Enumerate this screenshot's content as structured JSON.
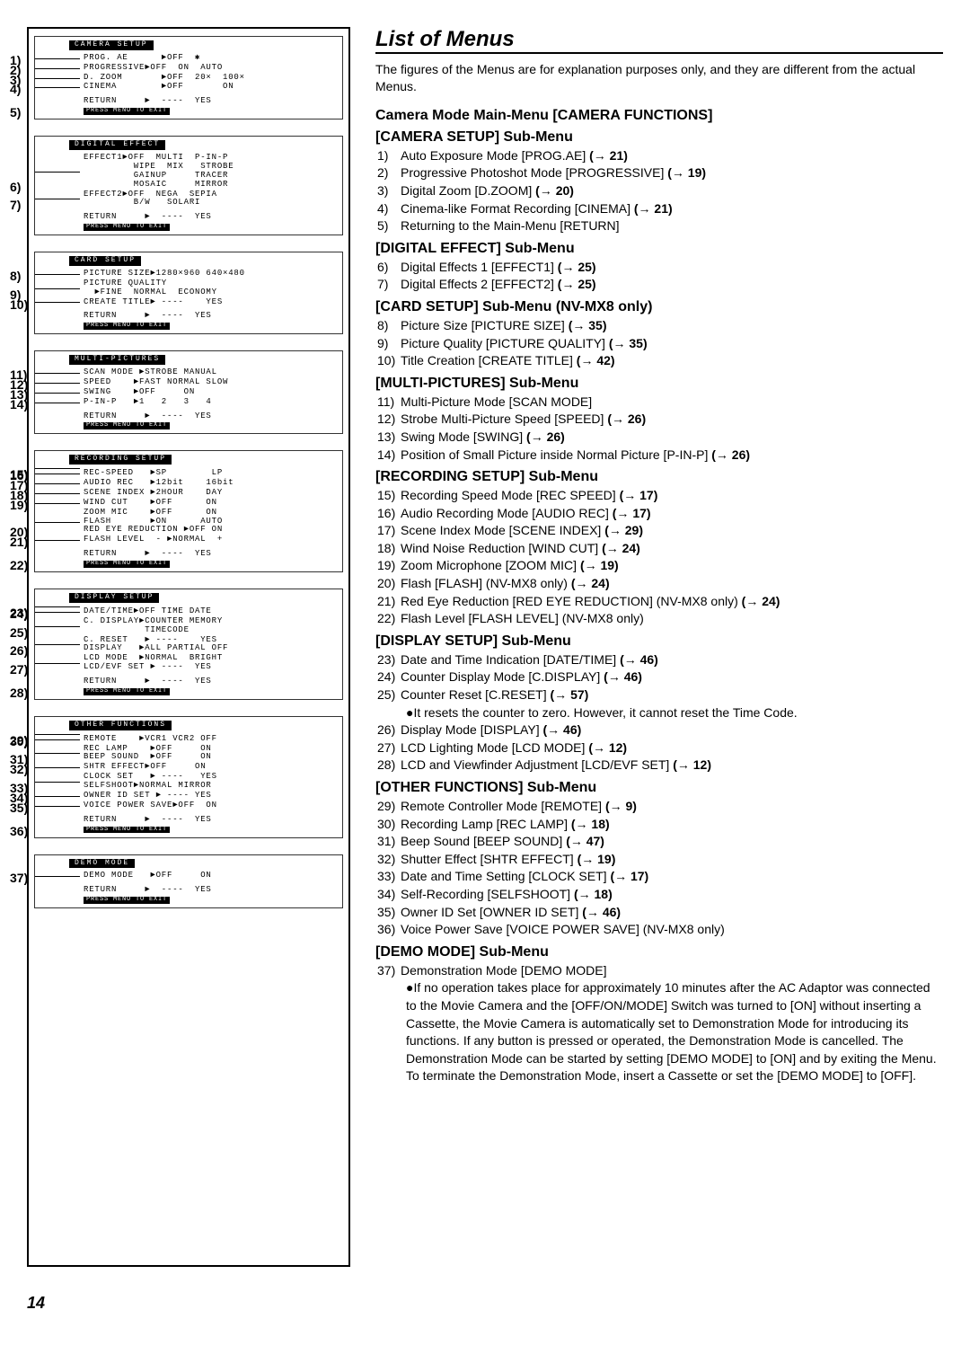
{
  "pageNumber": "14",
  "title": "List of Menus",
  "intro": "The figures of the Menus are for explanation purposes only, and they are different from the actual Menus.",
  "mainTitle": "Camera Mode Main-Menu [CAMERA FUNCTIONS]",
  "returnText": "RETURN",
  "returnHint": "PRESS MENU TO EXIT",
  "yesDash": "----  YES",
  "diagramBoxes": [
    {
      "header": "CAMERA SETUP",
      "rows": [
        {
          "num": "1)",
          "text": "PROG. AE      ►OFF  ✱"
        },
        {
          "num": "2)",
          "text": "PROGRESSIVE►OFF  ON  AUTO"
        },
        {
          "num": "3)",
          "text": "D. ZOOM       ►OFF  20×  100×"
        },
        {
          "num": "4)",
          "text": "CINEMA        ►OFF       ON"
        },
        {
          "num": "5)",
          "text": "",
          "isReturn": true
        }
      ]
    },
    {
      "header": "DIGITAL EFFECT",
      "rows": [
        {
          "num": "6)",
          "text": "EFFECT1►OFF  MULTI  P-IN-P\n         WIPE  MIX   STROBE\n         GAINUP     TRACER\n         MOSAIC     MIRROR"
        },
        {
          "num": "7)",
          "text": "EFFECT2►OFF  NEGA  SEPIA\n         B/W   SOLARI"
        }
      ]
    },
    {
      "header": "CARD SETUP",
      "rows": [
        {
          "num": "8)",
          "text": "PICTURE SIZE►1280×960 640×480"
        },
        {
          "num": "9)",
          "text": "PICTURE QUALITY\n  ►FINE  NORMAL  ECONOMY"
        },
        {
          "num": "10)",
          "text": "CREATE TITLE► ----    YES"
        }
      ]
    },
    {
      "header": "MULTI-PICTURES",
      "rows": [
        {
          "num": "11)",
          "text": "SCAN MODE ►STROBE MANUAL"
        },
        {
          "num": "12)",
          "text": "SPEED    ►FAST NORMAL SLOW"
        },
        {
          "num": "13)",
          "text": "SWING    ►OFF     ON"
        },
        {
          "num": "14)",
          "text": "P-IN-P   ►1   2   3   4"
        }
      ]
    },
    {
      "header": "RECORDING SETUP",
      "rows": [
        {
          "num": "15)",
          "text": ""
        },
        {
          "num": "16)",
          "text": "REC-SPEED   ►SP        LP"
        },
        {
          "num": "17)",
          "text": "AUDIO REC   ►12bit    16bit"
        },
        {
          "num": "18)",
          "text": "SCENE INDEX ►2HOUR    DAY"
        },
        {
          "num": "19)",
          "text": "WIND CUT    ►OFF      ON"
        },
        {
          "num": "20)",
          "text": "ZOOM MIC    ►OFF      ON\nFLASH       ►ON      AUTO\nRED EYE REDUCTION ►OFF ON"
        },
        {
          "num": "21)",
          "text": "FLASH LEVEL  - ►NORMAL  +"
        },
        {
          "num": "22)",
          "text": "",
          "isReturnInline": true
        }
      ]
    },
    {
      "header": "DISPLAY SETUP",
      "rows": [
        {
          "num": "23)",
          "text": ""
        },
        {
          "num": "24)",
          "text": "DATE/TIME►OFF TIME DATE"
        },
        {
          "num": "25)",
          "text": "C. DISPLAY►COUNTER MEMORY\n           TIMECODE"
        },
        {
          "num": "26)",
          "text": "C. RESET   ► ----    YES\nDISPLAY   ►ALL PARTIAL OFF"
        },
        {
          "num": "27)",
          "text": "LCD MODE  ►NORMAL  BRIGHT\nLCD/EVF SET ► ----  YES"
        },
        {
          "num": "28)",
          "text": "",
          "isReturnInline": true
        }
      ]
    },
    {
      "header": "OTHER FUNCTIONS",
      "rows": [
        {
          "num": "29)",
          "text": ""
        },
        {
          "num": "30)",
          "text": "REMOTE    ►VCR1 VCR2 OFF"
        },
        {
          "num": "31)",
          "text": "REC LAMP    ►OFF     ON\nBEEP SOUND  ►OFF     ON"
        },
        {
          "num": "32)",
          "text": "SHTR EFFECT►OFF     ON"
        },
        {
          "num": "33)",
          "text": "CLOCK SET   ► ----   YES\nSELFSHOOT►NORMAL MIRROR"
        },
        {
          "num": "34)",
          "text": "OWNER ID SET ► ---- YES"
        },
        {
          "num": "35)",
          "text": "VOICE POWER SAVE►OFF  ON"
        },
        {
          "num": "36)",
          "text": "",
          "isReturnInline": true
        }
      ]
    },
    {
      "header": "DEMO MODE",
      "rows": [
        {
          "num": "37)",
          "text": "DEMO MODE   ►OFF     ON"
        }
      ]
    }
  ],
  "sections": [
    {
      "heading": "[CAMERA SETUP] Sub-Menu",
      "items": [
        {
          "n": "1)",
          "label": "Auto Exposure Mode [PROG.AE]",
          "ref": "(→ 21)"
        },
        {
          "n": "2)",
          "label": "Progressive Photoshot Mode [PROGRESSIVE]",
          "ref": "(→ 19)"
        },
        {
          "n": "3)",
          "label": "Digital Zoom [D.ZOOM]",
          "ref": "(→ 20)"
        },
        {
          "n": "4)",
          "label": "Cinema-like Format Recording [CINEMA]",
          "ref": "(→ 21)"
        },
        {
          "n": "5)",
          "label": "Returning to the Main-Menu [RETURN]",
          "ref": ""
        }
      ]
    },
    {
      "heading": "[DIGITAL EFFECT] Sub-Menu",
      "items": [
        {
          "n": "6)",
          "label": "Digital Effects 1 [EFFECT1]",
          "ref": "(→ 25)"
        },
        {
          "n": "7)",
          "label": "Digital Effects 2 [EFFECT2]",
          "ref": "(→ 25)"
        }
      ]
    },
    {
      "heading": "[CARD SETUP] Sub-Menu (NV-MX8 only)",
      "items": [
        {
          "n": "8)",
          "label": "Picture Size [PICTURE SIZE]",
          "ref": "(→ 35)"
        },
        {
          "n": "9)",
          "label": "Picture Quality [PICTURE QUALITY]",
          "ref": "(→ 35)"
        },
        {
          "n": "10)",
          "label": "Title Creation [CREATE TITLE]",
          "ref": "(→ 42)"
        }
      ]
    },
    {
      "heading": "[MULTI-PICTURES] Sub-Menu",
      "items": [
        {
          "n": "11)",
          "label": "Multi-Picture Mode [SCAN MODE]",
          "ref": ""
        },
        {
          "n": "12)",
          "label": "Strobe Multi-Picture Speed [SPEED]",
          "ref": "(→ 26)"
        },
        {
          "n": "13)",
          "label": "Swing Mode [SWING]",
          "ref": "(→ 26)"
        },
        {
          "n": "14)",
          "label": "Position of Small Picture inside Normal Picture [P-IN-P]",
          "ref": "(→ 26)"
        }
      ]
    },
    {
      "heading": "[RECORDING SETUP] Sub-Menu",
      "items": [
        {
          "n": "15)",
          "label": "Recording Speed Mode [REC SPEED]",
          "ref": "(→ 17)"
        },
        {
          "n": "16)",
          "label": "Audio Recording Mode [AUDIO REC]",
          "ref": "(→ 17)"
        },
        {
          "n": "17)",
          "label": "Scene Index Mode [SCENE INDEX]",
          "ref": "(→ 29)"
        },
        {
          "n": "18)",
          "label": "Wind Noise Reduction [WIND CUT]",
          "ref": "(→ 24)"
        },
        {
          "n": "19)",
          "label": "Zoom Microphone [ZOOM MIC]",
          "ref": "(→ 19)"
        },
        {
          "n": "20)",
          "label": "Flash [FLASH] (NV-MX8 only)",
          "ref": "(→ 24)"
        },
        {
          "n": "21)",
          "label": "Red Eye Reduction [RED EYE REDUCTION] (NV-MX8 only)",
          "ref": "(→ 24)"
        },
        {
          "n": "22)",
          "label": "Flash Level [FLASH LEVEL] (NV-MX8 only)",
          "ref": ""
        }
      ]
    },
    {
      "heading": "[DISPLAY SETUP] Sub-Menu",
      "items": [
        {
          "n": "23)",
          "label": "Date and Time Indication [DATE/TIME]",
          "ref": "(→ 46)"
        },
        {
          "n": "24)",
          "label": "Counter Display Mode [C.DISPLAY]",
          "ref": "(→ 46)"
        },
        {
          "n": "25)",
          "label": "Counter Reset [C.RESET]",
          "ref": "(→ 57)"
        }
      ],
      "note": "●It resets the counter to zero. However, it cannot reset the Time Code.",
      "items2": [
        {
          "n": "26)",
          "label": "Display Mode [DISPLAY]",
          "ref": "(→ 46)"
        },
        {
          "n": "27)",
          "label": "LCD Lighting Mode [LCD MODE]",
          "ref": "(→ 12)"
        },
        {
          "n": "28)",
          "label": "LCD and Viewfinder Adjustment [LCD/EVF SET]",
          "ref": "(→ 12)"
        }
      ]
    },
    {
      "heading": "[OTHER FUNCTIONS] Sub-Menu",
      "items": [
        {
          "n": "29)",
          "label": "Remote Controller Mode [REMOTE]",
          "ref": "(→ 9)"
        },
        {
          "n": "30)",
          "label": "Recording Lamp [REC LAMP]",
          "ref": "(→ 18)"
        },
        {
          "n": "31)",
          "label": "Beep Sound [BEEP SOUND]",
          "ref": "(→ 47)"
        },
        {
          "n": "32)",
          "label": "Shutter Effect [SHTR EFFECT]",
          "ref": "(→ 19)"
        },
        {
          "n": "33)",
          "label": "Date and Time Setting [CLOCK SET]",
          "ref": "(→ 17)"
        },
        {
          "n": "34)",
          "label": "Self-Recording [SELFSHOOT]",
          "ref": "(→ 18)"
        },
        {
          "n": "35)",
          "label": "Owner ID Set [OWNER ID SET]",
          "ref": "(→ 46)"
        },
        {
          "n": "36)",
          "label": "Voice Power Save [VOICE POWER SAVE] (NV-MX8 only)",
          "ref": ""
        }
      ]
    },
    {
      "heading": "[DEMO MODE] Sub-Menu",
      "items": [
        {
          "n": "37)",
          "label": "Demonstration Mode [DEMO MODE]",
          "ref": ""
        }
      ],
      "note": "●If no operation takes place for approximately 10 minutes after the AC Adaptor was connected to the Movie Camera and the [OFF/ON/MODE] Switch was turned to [ON] without inserting a Cassette, the Movie Camera is automatically set to Demonstration Mode for introducing its functions. If any button is pressed or operated, the Demonstration Mode is cancelled. The Demonstration Mode can be started by setting [DEMO MODE] to [ON] and by exiting the Menu. To terminate the Demonstration Mode, insert a Cassette or set the [DEMO MODE] to [OFF]."
    }
  ]
}
